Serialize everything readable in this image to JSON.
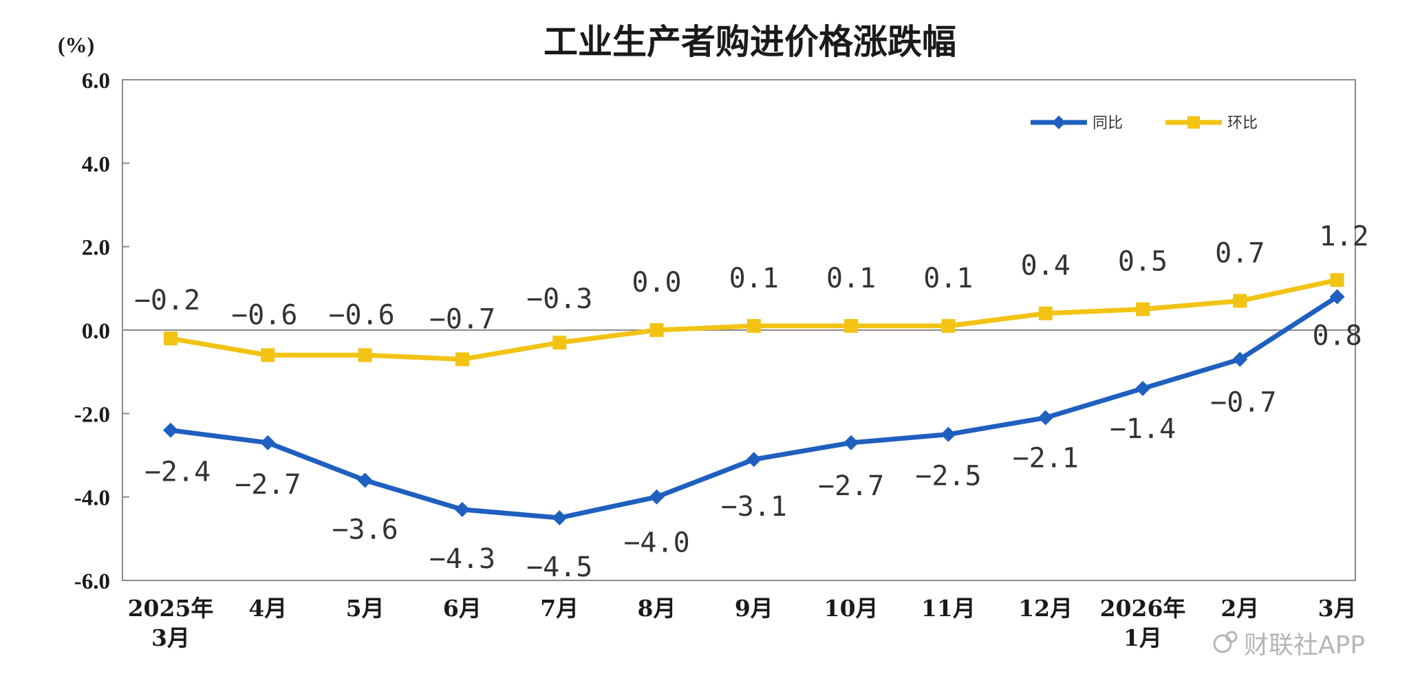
{
  "chart_data": {
    "type": "line",
    "title": "工业生产者购进价格涨跌幅",
    "unit_label": "(%)",
    "ylim": [
      -6.0,
      6.0
    ],
    "yticks": [
      "6.0",
      "4.0",
      "2.0",
      "0.0",
      "-2.0",
      "-4.0",
      "-6.0"
    ],
    "yticks_values": [
      6,
      4,
      2,
      0,
      -2,
      -4,
      -6
    ],
    "categories": [
      [
        "2025年",
        "3月"
      ],
      [
        "4月"
      ],
      [
        "5月"
      ],
      [
        "6月"
      ],
      [
        "7月"
      ],
      [
        "8月"
      ],
      [
        "9月"
      ],
      [
        "10月"
      ],
      [
        "11月"
      ],
      [
        "12月"
      ],
      [
        "2026年",
        "1月"
      ],
      [
        "2月"
      ],
      [
        "3月"
      ]
    ],
    "series": [
      {
        "name": "同比",
        "color": "#1f5fbf",
        "marker": "diamond",
        "values": [
          -2.4,
          -2.7,
          -3.6,
          -4.3,
          -4.5,
          -4.0,
          -3.1,
          -2.7,
          -2.5,
          -2.1,
          -1.4,
          -0.7,
          0.8
        ],
        "labels": [
          "−2.4",
          "−2.7",
          "−3.6",
          "−4.3",
          "−4.5",
          "−4.0",
          "−3.1",
          "−2.7",
          "−2.5",
          "−2.1",
          "−1.4",
          "−0.7",
          "0.8"
        ]
      },
      {
        "name": "环比",
        "color": "#f2c314",
        "marker": "square",
        "values": [
          -0.2,
          -0.6,
          -0.6,
          -0.7,
          -0.3,
          0.0,
          0.1,
          0.1,
          0.1,
          0.4,
          0.5,
          0.7,
          1.2
        ],
        "labels": [
          "−0.2",
          "−0.6",
          "−0.6",
          "−0.7",
          "−0.3",
          "0.0",
          "0.1",
          "0.1",
          "0.1",
          "0.4",
          "0.5",
          "0.7",
          "1.2"
        ]
      }
    ],
    "legend": "top-right",
    "grid": false
  },
  "watermark": {
    "text": "财联社APP"
  }
}
